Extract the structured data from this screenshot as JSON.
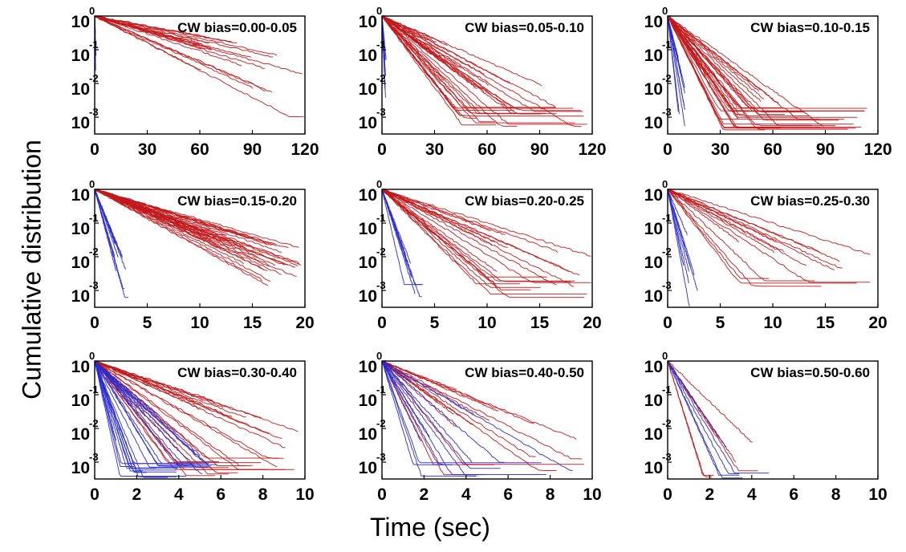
{
  "figure": {
    "ylabel": "Cumulative distribution",
    "xlabel": "Time (sec)"
  },
  "colors": {
    "ccw": "#c0181c",
    "cw": "#2a2ad0"
  },
  "chart_data": [
    {
      "type": "line",
      "title": "CW bias=0.00-0.05",
      "xlim": [
        0,
        120
      ],
      "xticks": [
        "0",
        "30",
        "60",
        "90",
        "120"
      ],
      "ylim": [
        -3.5,
        0
      ],
      "yscale": "log",
      "red": {
        "count": 20,
        "tau": [
          16,
          48
        ],
        "tail": [
          -3.2,
          -2.3
        ],
        "tmax": [
          55,
          120
        ]
      },
      "blue": {
        "count": 4,
        "tau": [
          0.15,
          0.4
        ],
        "tail": [
          -3.0,
          -2.6
        ],
        "tmax": [
          0.3,
          0.8
        ]
      }
    },
    {
      "type": "line",
      "title": "CW bias=0.05-0.10",
      "xlim": [
        0,
        120
      ],
      "xticks": [
        "0",
        "30",
        "60",
        "90",
        "120"
      ],
      "ylim": [
        -3.5,
        0
      ],
      "yscale": "log",
      "red": {
        "count": 35,
        "tau": [
          6,
          20
        ],
        "tail": [
          -3.3,
          -2.7
        ],
        "tmax": [
          25,
          120
        ]
      },
      "blue": {
        "count": 8,
        "tau": [
          0.3,
          0.8
        ],
        "tail": [
          -3.1,
          -2.7
        ],
        "tmax": [
          0.7,
          2.5
        ]
      }
    },
    {
      "type": "line",
      "title": "CW bias=0.10-0.15",
      "xlim": [
        0,
        120
      ],
      "xticks": [
        "0",
        "30",
        "60",
        "90",
        "120"
      ],
      "ylim": [
        -3.5,
        0
      ],
      "yscale": "log",
      "red": {
        "count": 35,
        "tau": [
          4,
          13
        ],
        "tail": [
          -3.4,
          -2.7
        ],
        "tmax": [
          18,
          115
        ]
      },
      "blue": {
        "count": 10,
        "tau": [
          0.8,
          2.2
        ],
        "tail": [
          -3.4,
          -2.6
        ],
        "tmax": [
          3,
          10
        ]
      }
    },
    {
      "type": "line",
      "title": "CW bias=0.15-0.20",
      "xlim": [
        0,
        20
      ],
      "xticks": [
        "0",
        "5",
        "10",
        "15",
        "20"
      ],
      "ylim": [
        -3.5,
        0
      ],
      "yscale": "log",
      "red": {
        "count": 35,
        "tau": [
          2.5,
          5
        ],
        "tail": [
          -3.4,
          -2.7
        ],
        "tmax": [
          10,
          20
        ]
      },
      "blue": {
        "count": 10,
        "tau": [
          0.35,
          0.6
        ],
        "tail": [
          -3.4,
          -2.8
        ],
        "tmax": [
          1.8,
          3.3
        ]
      }
    },
    {
      "type": "line",
      "title": "CW bias=0.20-0.25",
      "xlim": [
        0,
        20
      ],
      "xticks": [
        "0",
        "5",
        "10",
        "15",
        "20"
      ],
      "ylim": [
        -3.5,
        0
      ],
      "yscale": "log",
      "red": {
        "count": 22,
        "tau": [
          1.3,
          5
        ],
        "tail": [
          -3.4,
          -2.6
        ],
        "tmax": [
          8,
          20
        ]
      },
      "blue": {
        "count": 8,
        "tau": [
          0.3,
          0.7
        ],
        "tail": [
          -3.4,
          -2.8
        ],
        "tmax": [
          2,
          4
        ]
      }
    },
    {
      "type": "line",
      "title": "CW bias=0.25-0.30",
      "xlim": [
        0,
        20
      ],
      "xticks": [
        "0",
        "5",
        "10",
        "15",
        "20"
      ],
      "ylim": [
        -3.5,
        0
      ],
      "yscale": "log",
      "red": {
        "count": 15,
        "tau": [
          1,
          4.5
        ],
        "tail": [
          -3.4,
          -2.6
        ],
        "tmax": [
          6,
          20
        ]
      },
      "blue": {
        "count": 8,
        "tau": [
          0.25,
          0.6
        ],
        "tail": [
          -3.5,
          -2.9
        ],
        "tmax": [
          1.5,
          3.2
        ]
      }
    },
    {
      "type": "line",
      "title": "CW bias=0.30-0.40",
      "xlim": [
        0,
        10
      ],
      "xticks": [
        "0",
        "2",
        "4",
        "6",
        "8",
        "10"
      ],
      "ylim": [
        -3.5,
        0
      ],
      "yscale": "log",
      "red": {
        "count": 25,
        "tau": [
          0.5,
          2.2
        ],
        "tail": [
          -3.4,
          -2.8
        ],
        "tmax": [
          5,
          10
        ]
      },
      "blue": {
        "count": 30,
        "tau": [
          0.15,
          0.9
        ],
        "tail": [
          -3.5,
          -3.0
        ],
        "tmax": [
          1,
          6
        ]
      }
    },
    {
      "type": "line",
      "title": "CW bias=0.40-0.50",
      "xlim": [
        0,
        10
      ],
      "xticks": [
        "0",
        "2",
        "4",
        "6",
        "8",
        "10"
      ],
      "ylim": [
        -3.5,
        0
      ],
      "yscale": "log",
      "red": {
        "count": 15,
        "tau": [
          0.3,
          2
        ],
        "tail": [
          -3.4,
          -2.8
        ],
        "tmax": [
          2,
          10
        ]
      },
      "blue": {
        "count": 15,
        "tau": [
          0.2,
          1.2
        ],
        "tail": [
          -3.5,
          -3.0
        ],
        "tmax": [
          1.2,
          10
        ]
      }
    },
    {
      "type": "line",
      "title": "CW bias=0.50-0.60",
      "xlim": [
        0,
        10
      ],
      "xticks": [
        "0",
        "2",
        "4",
        "6",
        "8",
        "10"
      ],
      "ylim": [
        -3.5,
        0
      ],
      "yscale": "log",
      "red": {
        "count": 6,
        "tau": [
          0.2,
          0.8
        ],
        "tail": [
          -3.5,
          -3.1
        ],
        "tmax": [
          1.2,
          4.5
        ]
      },
      "blue": {
        "count": 5,
        "tau": [
          0.3,
          0.85
        ],
        "tail": [
          -3.5,
          -3.2
        ],
        "tmax": [
          2.5,
          6
        ]
      }
    }
  ]
}
